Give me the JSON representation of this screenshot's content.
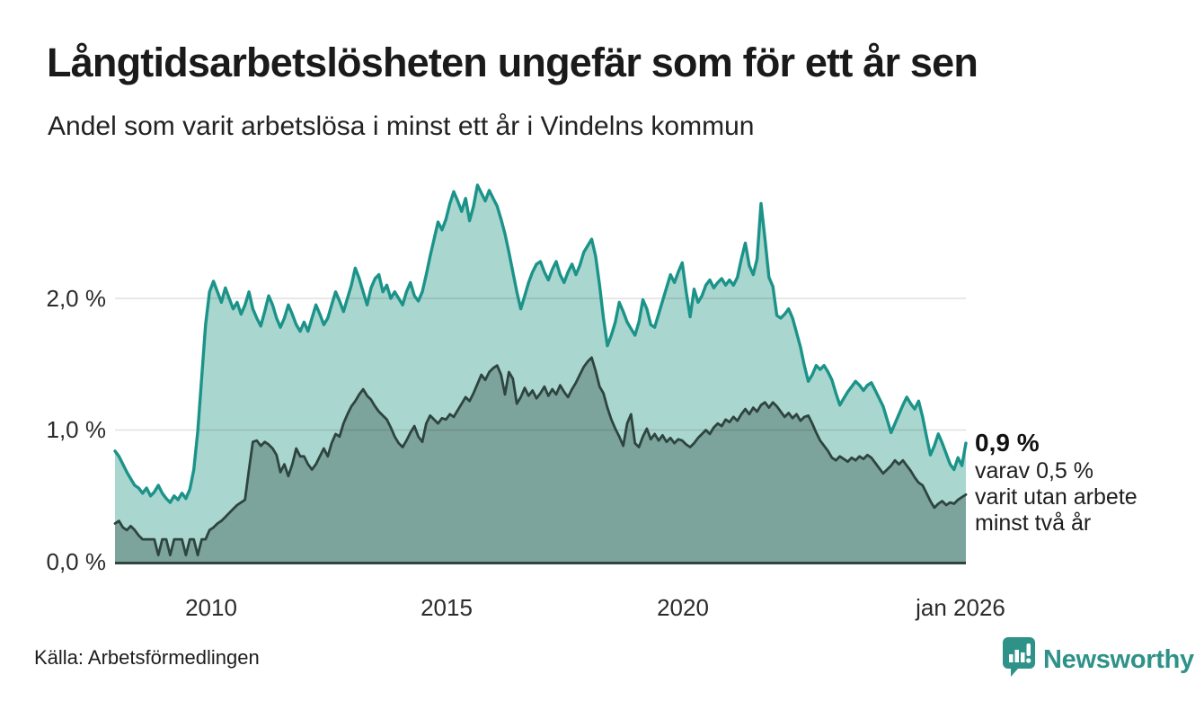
{
  "header": {
    "title": "Långtidsarbetslösheten ungefär som för ett år sen",
    "subtitle": "Andel som varit arbetslösa i minst ett år i Vindelns kommun"
  },
  "chart_data": {
    "type": "area",
    "title": "Långtidsarbetslösheten ungefär som för ett år sen",
    "subtitle": "Andel som varit arbetslösa i minst ett år i Vindelns kommun",
    "unit": "%",
    "x_start": "2008-01",
    "x_end": "2026-01",
    "interval": "monthly",
    "ylim": [
      0,
      2.95
    ],
    "grid": "horizontal",
    "grid_values": [
      1.0,
      2.0
    ],
    "y_ticks": {
      "values": [
        0.0,
        1.0,
        2.0
      ],
      "labels": [
        "0,0 %",
        "1,0 %",
        "2,0 %"
      ]
    },
    "x_ticks": {
      "month_indices": [
        24,
        84,
        144,
        216
      ],
      "labels": [
        "2010",
        "2015",
        "2020",
        "jan 2026"
      ]
    },
    "series": [
      {
        "name": "Andel som varit arbetslösa minst ett år",
        "latest_value": 0.9,
        "color": "#1b9389",
        "fill": "#a9d6cf",
        "values": [
          0.84,
          0.8,
          0.74,
          0.68,
          0.63,
          0.58,
          0.56,
          0.52,
          0.56,
          0.5,
          0.53,
          0.58,
          0.52,
          0.48,
          0.45,
          0.5,
          0.47,
          0.52,
          0.48,
          0.55,
          0.7,
          0.99,
          1.4,
          1.8,
          2.05,
          2.13,
          2.05,
          1.97,
          2.08,
          2.0,
          1.92,
          1.97,
          1.88,
          1.95,
          2.05,
          1.92,
          1.85,
          1.79,
          1.9,
          2.02,
          1.95,
          1.85,
          1.78,
          1.85,
          1.95,
          1.88,
          1.8,
          1.75,
          1.82,
          1.75,
          1.85,
          1.95,
          1.88,
          1.8,
          1.85,
          1.95,
          2.05,
          1.98,
          1.9,
          2.0,
          2.1,
          2.23,
          2.15,
          2.05,
          1.95,
          2.08,
          2.15,
          2.18,
          2.05,
          2.1,
          2.0,
          2.05,
          2.0,
          1.95,
          2.05,
          2.12,
          2.02,
          1.98,
          2.05,
          2.18,
          2.32,
          2.45,
          2.58,
          2.52,
          2.6,
          2.72,
          2.81,
          2.74,
          2.66,
          2.76,
          2.59,
          2.7,
          2.86,
          2.8,
          2.74,
          2.82,
          2.76,
          2.7,
          2.6,
          2.49,
          2.35,
          2.2,
          2.05,
          1.92,
          2.02,
          2.12,
          2.2,
          2.26,
          2.28,
          2.2,
          2.14,
          2.22,
          2.28,
          2.18,
          2.12,
          2.2,
          2.26,
          2.18,
          2.25,
          2.35,
          2.4,
          2.45,
          2.32,
          2.1,
          1.85,
          1.64,
          1.72,
          1.82,
          1.97,
          1.9,
          1.82,
          1.77,
          1.72,
          1.82,
          1.99,
          1.92,
          1.8,
          1.78,
          1.88,
          1.98,
          2.08,
          2.18,
          2.12,
          2.2,
          2.27,
          2.05,
          1.86,
          2.07,
          1.97,
          2.02,
          2.1,
          2.14,
          2.08,
          2.12,
          2.15,
          2.1,
          2.14,
          2.1,
          2.16,
          2.3,
          2.42,
          2.25,
          2.18,
          2.3,
          2.72,
          2.45,
          2.16,
          2.09,
          1.87,
          1.85,
          1.88,
          1.92,
          1.85,
          1.74,
          1.63,
          1.49,
          1.37,
          1.42,
          1.49,
          1.46,
          1.49,
          1.44,
          1.38,
          1.28,
          1.19,
          1.24,
          1.29,
          1.33,
          1.37,
          1.34,
          1.3,
          1.34,
          1.36,
          1.3,
          1.24,
          1.18,
          1.08,
          0.98,
          1.05,
          1.12,
          1.19,
          1.25,
          1.2,
          1.16,
          1.22,
          1.1,
          0.95,
          0.81,
          0.88,
          0.97,
          0.9,
          0.82,
          0.74,
          0.7,
          0.79,
          0.73,
          0.9
        ]
      },
      {
        "name": "varav utan arbete minst två år",
        "latest_value": 0.5,
        "color": "#2e443f",
        "fill": "#7ca49c",
        "values": [
          0.29,
          0.31,
          0.26,
          0.24,
          0.27,
          0.24,
          0.2,
          0.17,
          0.17,
          0.17,
          0.17,
          0.05,
          0.17,
          0.17,
          0.05,
          0.17,
          0.17,
          0.17,
          0.05,
          0.17,
          0.17,
          0.05,
          0.17,
          0.17,
          0.24,
          0.26,
          0.29,
          0.31,
          0.34,
          0.37,
          0.4,
          0.43,
          0.45,
          0.47,
          0.7,
          0.91,
          0.92,
          0.88,
          0.91,
          0.89,
          0.86,
          0.81,
          0.68,
          0.74,
          0.65,
          0.74,
          0.86,
          0.8,
          0.8,
          0.74,
          0.7,
          0.74,
          0.8,
          0.86,
          0.8,
          0.9,
          0.97,
          0.95,
          1.05,
          1.12,
          1.18,
          1.22,
          1.27,
          1.31,
          1.26,
          1.23,
          1.18,
          1.14,
          1.11,
          1.08,
          1.02,
          0.95,
          0.9,
          0.87,
          0.92,
          0.98,
          1.03,
          0.95,
          0.91,
          1.05,
          1.11,
          1.08,
          1.05,
          1.09,
          1.08,
          1.12,
          1.1,
          1.15,
          1.2,
          1.25,
          1.22,
          1.28,
          1.35,
          1.42,
          1.38,
          1.44,
          1.47,
          1.49,
          1.42,
          1.27,
          1.44,
          1.39,
          1.2,
          1.25,
          1.32,
          1.26,
          1.3,
          1.24,
          1.28,
          1.33,
          1.26,
          1.31,
          1.27,
          1.34,
          1.29,
          1.25,
          1.31,
          1.36,
          1.42,
          1.48,
          1.52,
          1.55,
          1.45,
          1.33,
          1.28,
          1.17,
          1.08,
          1.01,
          0.95,
          0.88,
          1.05,
          1.12,
          0.9,
          0.87,
          0.95,
          1.01,
          0.93,
          0.97,
          0.92,
          0.96,
          0.91,
          0.94,
          0.9,
          0.93,
          0.92,
          0.89,
          0.87,
          0.9,
          0.94,
          0.97,
          1.0,
          0.97,
          1.02,
          1.05,
          1.03,
          1.08,
          1.06,
          1.1,
          1.07,
          1.12,
          1.16,
          1.12,
          1.17,
          1.14,
          1.19,
          1.21,
          1.17,
          1.21,
          1.18,
          1.14,
          1.1,
          1.13,
          1.09,
          1.12,
          1.07,
          1.1,
          1.11,
          1.05,
          0.98,
          0.92,
          0.88,
          0.84,
          0.79,
          0.77,
          0.8,
          0.78,
          0.76,
          0.79,
          0.77,
          0.8,
          0.78,
          0.81,
          0.79,
          0.75,
          0.71,
          0.67,
          0.7,
          0.73,
          0.77,
          0.74,
          0.77,
          0.73,
          0.69,
          0.64,
          0.6,
          0.58,
          0.52,
          0.46,
          0.41,
          0.44,
          0.46,
          0.43,
          0.45,
          0.44,
          0.47,
          0.49,
          0.51
        ]
      }
    ],
    "annotation": {
      "value_label": "0,9 %",
      "detail_lines": [
        "varav 0,5 %",
        "varit utan arbete",
        "minst två år"
      ]
    },
    "legend_position": "none",
    "axis_color": "#31443f",
    "gridline_color": "rgba(0,0,0,0.12)"
  },
  "footer": {
    "source": "Källa: Arbetsförmedlingen",
    "brand": "Newsworthy"
  },
  "colors": {
    "accent_teal": "#1b9389",
    "light_area": "#a9d6cf",
    "dark_area": "#7ca49c",
    "dark_line": "#2e443f",
    "brand_teal": "#2f9289",
    "text": "#1a1a1a",
    "background": "#ffffff"
  }
}
